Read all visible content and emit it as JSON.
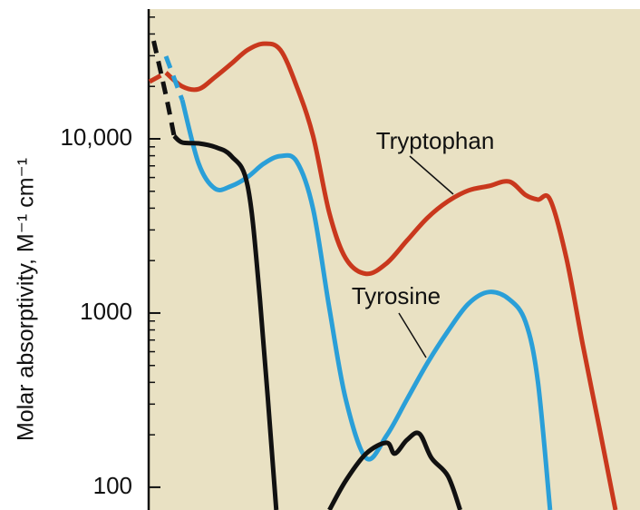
{
  "chart_data": {
    "type": "line",
    "y_label": "Molar absorptivity, M⁻¹ cm⁻¹",
    "xlim": [
      192,
      312
    ],
    "ylim": [
      74,
      55600
    ],
    "log_y": true,
    "yticks": [
      {
        "value": 100,
        "label": "100"
      },
      {
        "value": 1000,
        "label": "1000"
      },
      {
        "value": 10000,
        "label": "10,000"
      }
    ],
    "yticks_minor": [
      200,
      300,
      400,
      500,
      600,
      700,
      800,
      900,
      2000,
      3000,
      4000,
      5000,
      6000,
      7000,
      8000,
      9000,
      20000,
      30000,
      40000,
      50000
    ],
    "background": "#e9e1c3",
    "series": [
      {
        "name": "Tryptophan",
        "color": "#c9381d",
        "dash_until_x": 196,
        "x": [
          192,
          196,
          200,
          204,
          208,
          212,
          216,
          220,
          224,
          228,
          232,
          236,
          240,
          245,
          250,
          255,
          260,
          265,
          270,
          275,
          280,
          284,
          287,
          290,
          294,
          298,
          302,
          306
        ],
        "values": [
          21300,
          24000,
          20000,
          19300,
          22600,
          27000,
          32400,
          35200,
          32400,
          20000,
          10400,
          3740,
          2060,
          1680,
          1930,
          2610,
          3520,
          4380,
          5050,
          5360,
          5690,
          4760,
          4480,
          4480,
          2060,
          658,
          223,
          74
        ]
      },
      {
        "name": "Tyrosine",
        "color": "#2a9fd8",
        "dash_until_x": 200,
        "x": [
          196,
          200,
          204,
          208,
          212,
          216,
          220,
          224,
          228,
          232,
          236,
          240,
          245,
          250,
          255,
          260,
          265,
          270,
          275,
          280,
          284,
          287,
          290
        ],
        "values": [
          29800,
          16700,
          7220,
          5180,
          5360,
          6040,
          7220,
          7960,
          7410,
          3970,
          1060,
          320,
          147,
          198,
          320,
          517,
          787,
          1130,
          1320,
          1200,
          888,
          406,
          74
        ]
      },
      {
        "color": "#111111",
        "dash_until_x": 198,
        "x": [
          193,
          196,
          198,
          200,
          204,
          208,
          212,
          216,
          219,
          223,
          230,
          236,
          240,
          245,
          250,
          252,
          255,
          258,
          261,
          265,
          268
        ],
        "values": [
          36500,
          17800,
          10400,
          9530,
          9420,
          8980,
          7960,
          5360,
          1200,
          74,
          null,
          74,
          109,
          156,
          180,
          156,
          187,
          203,
          147,
          116,
          74
        ]
      }
    ]
  }
}
